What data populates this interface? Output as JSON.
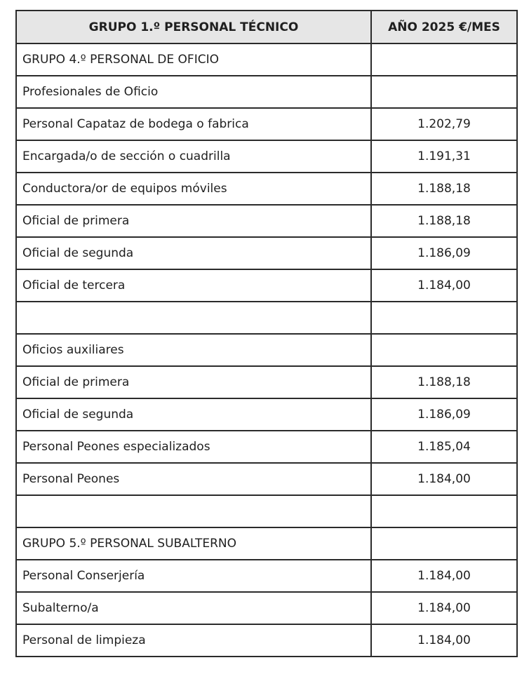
{
  "table": {
    "header": {
      "category": "GRUPO 1.º PERSONAL TÉCNICO",
      "value": "AÑO 2025 €/MES"
    },
    "rows": [
      {
        "label": "GRUPO 4.º PERSONAL DE OFICIO",
        "value": ""
      },
      {
        "label": "Profesionales de Oficio",
        "value": ""
      },
      {
        "label": "Personal Capataz de bodega o fabrica",
        "value": "1.202,79"
      },
      {
        "label": "Encargada/o de sección o cuadrilla",
        "value": "1.191,31"
      },
      {
        "label": "Conductora/or de equipos móviles",
        "value": "1.188,18"
      },
      {
        "label": "Oficial de primera",
        "value": "1.188,18"
      },
      {
        "label": "Oficial de segunda",
        "value": "1.186,09"
      },
      {
        "label": "Oficial de tercera",
        "value": "1.184,00"
      },
      {
        "label": "",
        "value": ""
      },
      {
        "label": "Oficios auxiliares",
        "value": ""
      },
      {
        "label": "Oficial de primera",
        "value": "1.188,18"
      },
      {
        "label": "Oficial de segunda",
        "value": "1.186,09"
      },
      {
        "label": "Personal Peones especializados",
        "value": "1.185,04"
      },
      {
        "label": "Personal Peones",
        "value": "1.184,00"
      },
      {
        "label": "",
        "value": ""
      },
      {
        "label": "GRUPO 5.º PERSONAL SUBALTERNO",
        "value": ""
      },
      {
        "label": "Personal Conserjería",
        "value": "1.184,00"
      },
      {
        "label": "Subalterno/a",
        "value": "1.184,00"
      },
      {
        "label": "Personal de limpieza",
        "value": "1.184,00"
      }
    ],
    "colors": {
      "header_bg": "#e6e6e6",
      "border": "#2b2b2b",
      "text": "#1f1f1f"
    }
  }
}
